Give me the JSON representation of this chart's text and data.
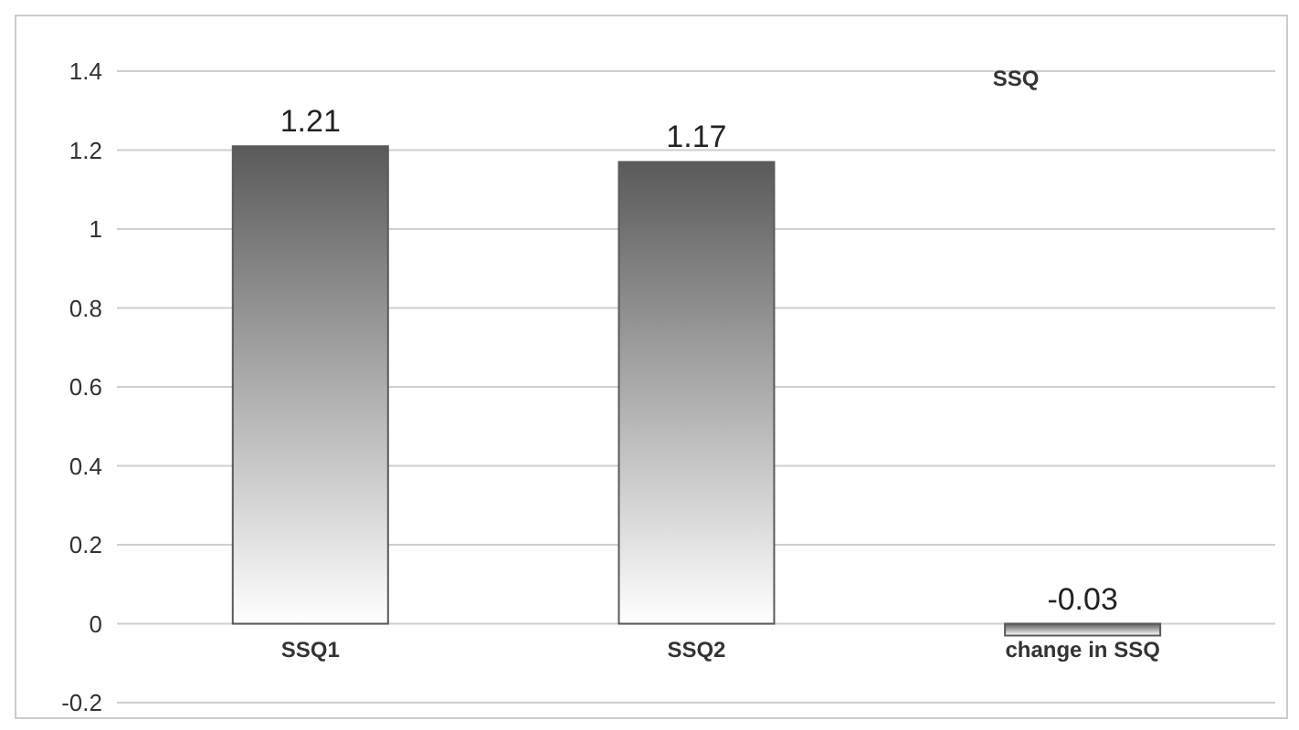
{
  "chart_data": {
    "type": "bar",
    "title": "SSQ",
    "categories": [
      "SSQ1",
      "SSQ2",
      "change in SSQ"
    ],
    "values": [
      1.21,
      1.17,
      -0.03
    ],
    "color": "#5a5a5a",
    "ylim": [
      -0.2,
      1.4
    ],
    "yticks": [
      -0.2,
      0,
      0.2,
      0.4,
      0.6,
      0.8,
      1,
      1.2,
      1.4
    ],
    "grid": "y",
    "data_labels": true
  }
}
